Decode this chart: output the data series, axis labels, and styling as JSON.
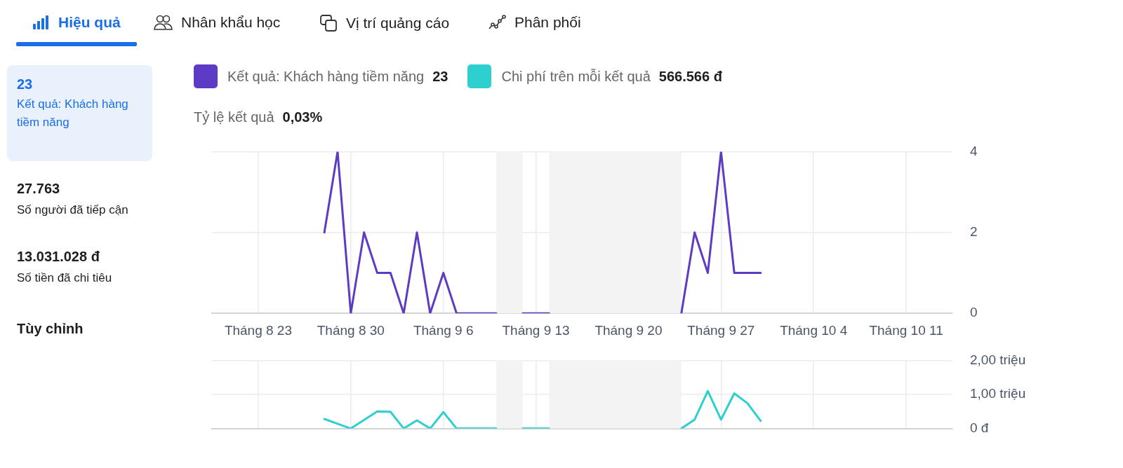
{
  "chart_data": [
    {
      "type": "other",
      "annotations": [
        "Hiệu quả",
        "Nhân khẩu học",
        "Vị trí quảng cáo",
        "Phân phối",
        "23",
        "Kết quả: Khách hàng tiềm năng",
        "27.763",
        "Số người đã tiếp cận",
        "13.031.028 đ",
        "Số tiền đã chi tiêu",
        "Tùy chỉnh"
      ]
    },
    {
      "type": "line",
      "x": [
        "--08-28",
        "--08-29",
        "--08-30",
        "--08-31",
        "--09-01",
        "--09-02",
        "--09-03",
        "--09-04",
        "--09-05",
        "--09-06",
        "--09-07",
        "--09-08",
        "--09-09",
        "--09-10",
        "--09-11",
        "--09-12",
        "--09-13",
        "--09-14",
        "--09-15",
        "--09-16",
        "--09-17",
        "--09-18",
        "--09-19",
        "--09-20",
        "--09-21",
        "--09-22",
        "--09-23",
        "--09-24",
        "--09-25",
        "--09-26",
        "--09-27",
        "--09-28",
        "--09-29",
        "--09-30"
      ],
      "series": [
        {
          "name": "Kết quả: Khách hàng tiềm năng",
          "color": "#5e3bc4",
          "values": [
            2,
            4,
            0,
            2,
            1,
            1,
            0,
            2,
            0,
            1,
            0,
            0,
            0,
            0,
            null,
            0,
            0,
            0,
            null,
            null,
            null,
            null,
            null,
            null,
            null,
            null,
            null,
            0,
            2,
            1,
            4,
            1,
            1,
            1
          ]
        }
      ],
      "annotations": [
        "23",
        "Tỷ lệ kết quả",
        "0,03%"
      ],
      "xlim": [
        "--08-19T12:00",
        "--10-14T12:00"
      ],
      "xticks": [
        {
          "value": "--08-23",
          "label": "Tháng 8 23"
        },
        {
          "value": "--08-30",
          "label": "Tháng 8 30"
        },
        {
          "value": "--09-06",
          "label": "Tháng 9 6"
        },
        {
          "value": "--09-13",
          "label": "Tháng 9 13"
        },
        {
          "value": "--09-20",
          "label": "Tháng 9 20"
        },
        {
          "value": "--09-27",
          "label": "Tháng 9 27"
        },
        {
          "value": "--10-04",
          "label": "Tháng 10 4"
        },
        {
          "value": "--10-11",
          "label": "Tháng 10 11"
        }
      ],
      "ylim": [
        0,
        4
      ],
      "yticks": [
        0,
        2,
        4
      ],
      "bands": [
        {
          "axis": "x",
          "from": "--09-10",
          "to": "--09-12",
          "color": "#f3f3f3"
        },
        {
          "axis": "x",
          "from": "--09-14",
          "to": "--09-24",
          "color": "#f3f3f3"
        }
      ],
      "grid": true,
      "legend": "top",
      "marker": "none",
      "line_style": "solid"
    },
    {
      "type": "line",
      "x": [
        "--08-28",
        "--08-29",
        "--08-30",
        "--08-31",
        "--09-01",
        "--09-02",
        "--09-03",
        "--09-04",
        "--09-05",
        "--09-06",
        "--09-07",
        "--09-08",
        "--09-09",
        "--09-10",
        "--09-11",
        "--09-12",
        "--09-13",
        "--09-14",
        "--09-15",
        "--09-16",
        "--09-17",
        "--09-18",
        "--09-19",
        "--09-20",
        "--09-21",
        "--09-22",
        "--09-23",
        "--09-24",
        "--09-25",
        "--09-26",
        "--09-27",
        "--09-28",
        "--09-29",
        "--09-30"
      ],
      "series": [
        {
          "name": "Chi phí trên mỗi kết quả",
          "color": "#2ecfcf",
          "values": [
            0.28,
            0.14,
            0,
            0.25,
            0.5,
            0.49,
            0,
            0.24,
            0,
            0.48,
            0,
            0,
            0,
            0,
            null,
            0,
            0,
            0,
            null,
            null,
            null,
            null,
            null,
            null,
            null,
            null,
            null,
            0,
            0.26,
            1.1,
            0.26,
            1.03,
            0.74,
            0.22
          ]
        }
      ],
      "annotations": [
        "566.566 đ"
      ],
      "xlim": [
        "--08-19T12:00",
        "--10-14T12:00"
      ],
      "xticks": [
        {
          "value": "--08-23",
          "label": null
        },
        {
          "value": "--08-30",
          "label": null
        },
        {
          "value": "--09-06",
          "label": null
        },
        {
          "value": "--09-13",
          "label": null
        },
        {
          "value": "--09-20",
          "label": null
        },
        {
          "value": "--09-27",
          "label": null
        },
        {
          "value": "--10-04",
          "label": null
        },
        {
          "value": "--10-11",
          "label": null
        }
      ],
      "ylim": [
        0,
        2
      ],
      "yticks": [
        {
          "value": 0,
          "label": "0 đ"
        },
        {
          "value": 1,
          "label": "1,00 triệu"
        },
        {
          "value": 2,
          "label": "2,00 triệu"
        }
      ],
      "bands": [
        {
          "axis": "x",
          "from": "--09-10",
          "to": "--09-12",
          "color": "#f3f3f3"
        },
        {
          "axis": "x",
          "from": "--09-14",
          "to": "--09-24",
          "color": "#f3f3f3"
        }
      ],
      "grid": true,
      "legend": "top",
      "tick_labels": "y",
      "marker": "none",
      "line_style": "solid"
    }
  ]
}
